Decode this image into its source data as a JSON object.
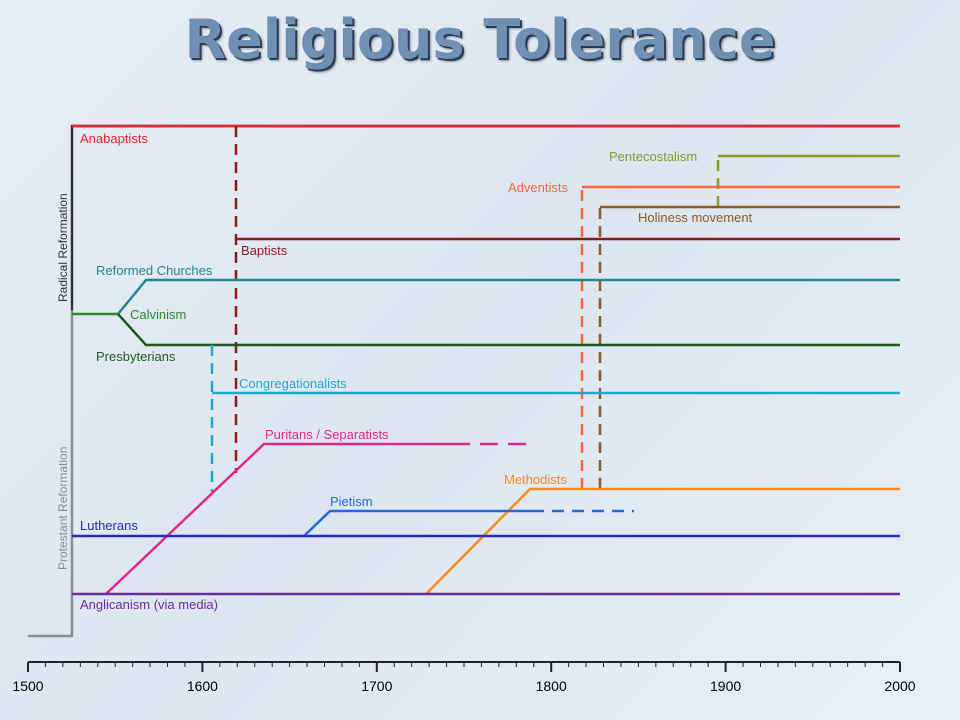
{
  "title": "Religious Tolerance",
  "groups": {
    "radical": "Radical Reformation",
    "protestant": "Protestant Reformation"
  },
  "axis": {
    "ticks": [
      "1500",
      "1600",
      "1700",
      "1800",
      "1900",
      "2000"
    ]
  },
  "labels": {
    "anabaptists": "Anabaptists",
    "pentecostalism": "Pentecostalism",
    "adventists": "Adventists",
    "holiness": "Holiness movement",
    "baptists": "Baptists",
    "reformed": "Reformed Churches",
    "calvinism": "Calvinism",
    "presbyterians": "Presbyterians",
    "congregationalists": "Congregationalists",
    "puritans": "Puritans / Separatists",
    "methodists": "Methodists",
    "pietism": "Pietism",
    "lutherans": "Lutherans",
    "anglicanism": "Anglicanism (via media)"
  },
  "colors": {
    "anabaptists": "#e8262a",
    "pentecostalism": "#8c9a2e",
    "adventists": "#f2683a",
    "holiness": "#8c5a26",
    "baptists": "#8b1a1a",
    "reformed": "#22868c",
    "calvinism": "#2b8a2b",
    "presbyterians": "#1f5a1f",
    "congregationalists": "#23a6cc",
    "puritans": "#e8268a",
    "methodists": "#f58a24",
    "pietism": "#2468e0",
    "lutherans": "#2a2ac0",
    "anglicanism": "#6a2aa0",
    "radical": "#333333",
    "protestant": "#8c8c8c"
  }
}
